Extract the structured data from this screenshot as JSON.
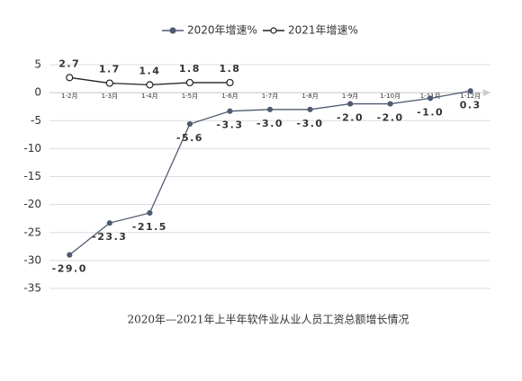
{
  "chart_data": {
    "type": "line",
    "title": "2020年—2021年上半年软件业从业人员工资总额增长情况",
    "categories": [
      "1-2月",
      "1-3月",
      "1-4月",
      "1-5月",
      "1-6月",
      "1-7月",
      "1-8月",
      "1-9月",
      "1-10月",
      "1-11月",
      "1-12月"
    ],
    "series": [
      {
        "name": "2020年增速%",
        "color": "#4e5b70",
        "values": [
          -29.0,
          -23.3,
          -21.5,
          -5.6,
          -3.3,
          -3.0,
          -3.0,
          -2.0,
          -2.0,
          -1.0,
          0.3
        ],
        "value_labels": [
          "-29.0",
          "-23.3",
          "-21.5",
          "-5.6",
          "-3.3",
          "-3.0",
          "-3.0",
          "-2.0",
          "-2.0",
          "-1.0",
          "0.3"
        ]
      },
      {
        "name": "2021年增速%",
        "color": "#222222",
        "values": [
          2.7,
          1.7,
          1.4,
          1.8,
          1.8,
          null,
          null,
          null,
          null,
          null,
          null
        ]
      }
    ],
    "ylim": [
      -35,
      5
    ],
    "yticks": [
      5,
      0,
      -5,
      -10,
      -15,
      -20,
      -25,
      -30,
      -35
    ],
    "grid": true,
    "legend": "top"
  }
}
